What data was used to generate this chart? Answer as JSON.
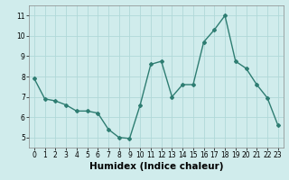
{
  "x": [
    0,
    1,
    2,
    3,
    4,
    5,
    6,
    7,
    8,
    9,
    10,
    11,
    12,
    13,
    14,
    15,
    16,
    17,
    18,
    19,
    20,
    21,
    22,
    23
  ],
  "y": [
    7.9,
    6.9,
    6.8,
    6.6,
    6.3,
    6.3,
    6.2,
    5.4,
    5.0,
    4.95,
    6.6,
    8.6,
    8.75,
    7.0,
    7.6,
    7.6,
    9.7,
    10.3,
    11.0,
    8.75,
    8.4,
    7.6,
    6.95,
    5.6
  ],
  "line_color": "#2e7d72",
  "marker": "D",
  "marker_size": 2.0,
  "bg_color": "#d0ecec",
  "grid_color": "#b0d8d8",
  "xlabel": "Humidex (Indice chaleur)",
  "xlabel_fontsize": 7.5,
  "ylim": [
    4.5,
    11.5
  ],
  "xlim": [
    -0.5,
    23.5
  ],
  "yticks": [
    5,
    6,
    7,
    8,
    9,
    10,
    11
  ],
  "xticks": [
    0,
    1,
    2,
    3,
    4,
    5,
    6,
    7,
    8,
    9,
    10,
    11,
    12,
    13,
    14,
    15,
    16,
    17,
    18,
    19,
    20,
    21,
    22,
    23
  ],
  "tick_fontsize": 5.5,
  "line_width": 1.0
}
